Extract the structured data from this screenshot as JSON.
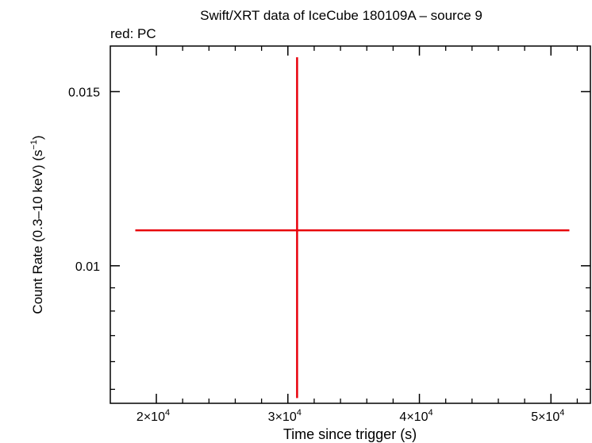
{
  "chart_data": {
    "type": "scatter",
    "title": "Swift/XRT data of IceCube 180109A – source 9",
    "subtitle": "red: PC",
    "xlabel": "Time since trigger (s)",
    "ylabel": "Count Rate (0.3–10 keV) (s",
    "ylabel_sup": "−1",
    "ylabel_tail": ")",
    "x_scale": "linear",
    "y_scale": "log",
    "xlim": [
      16500,
      53000
    ],
    "ylim": [
      0.00726,
      0.01668
    ],
    "x_ticks": [
      {
        "value": 20000,
        "mant": "2×10",
        "exp": "4"
      },
      {
        "value": 30000,
        "mant": "3×10",
        "exp": "4"
      },
      {
        "value": 40000,
        "mant": "4×10",
        "exp": "4"
      },
      {
        "value": 50000,
        "mant": "5×10",
        "exp": "4"
      }
    ],
    "y_ticks": [
      {
        "value": 0.01,
        "label": "0.01"
      },
      {
        "value": 0.015,
        "label": "0.015"
      }
    ],
    "series": [
      {
        "color": "#e8000b",
        "points": [
          {
            "x": 30700,
            "x_lo": 18400,
            "x_hi": 51400,
            "y": 0.01086,
            "y_lo": 0.00735,
            "y_hi": 0.01625
          }
        ]
      }
    ]
  }
}
